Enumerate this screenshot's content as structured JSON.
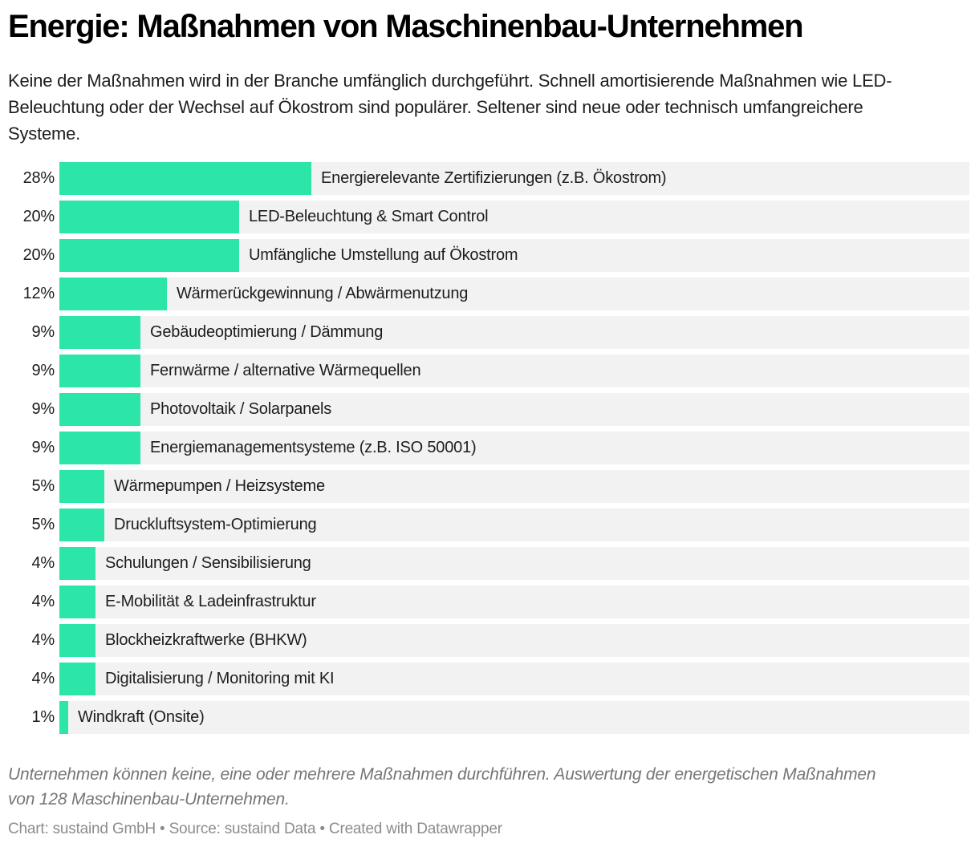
{
  "chart_data": {
    "type": "bar",
    "orientation": "horizontal",
    "title": "Energie: Maßnahmen von Maschinenbau-Unternehmen",
    "subtitle": "Keine der Maßnahmen wird in der Branche umfänglich durchgeführt. Schnell amortisierende Maßnahmen wie LED-Beleuchtung oder der Wechsel auf Ökostrom sind populärer. Seltener sind neue oder technisch umfangreichere Systeme.",
    "categories": [
      "Energierelevante Zertifizierungen (z.B. Ökostrom)",
      "LED-Beleuchtung & Smart Control",
      "Umfängliche Umstellung auf Ökostrom",
      "Wärmerückgewinnung / Abwärmenutzung",
      "Gebäudeoptimierung / Dämmung",
      "Fernwärme / alternative Wärmequellen",
      "Photovoltaik / Solarpanels",
      "Energiemanagementsysteme (z.B. ISO 50001)",
      "Wärmepumpen / Heizsysteme",
      "Druckluftsystem-Optimierung",
      "Schulungen / Sensibilisierung",
      "E-Mobilität & Ladeinfrastruktur",
      "Blockheizkraftwerke (BHKW)",
      "Digitalisierung / Monitoring mit KI",
      "Windkraft (Onsite)"
    ],
    "values": [
      28,
      20,
      20,
      12,
      9,
      9,
      9,
      9,
      5,
      5,
      4,
      4,
      4,
      4,
      1
    ],
    "value_labels": [
      "28%",
      "20%",
      "20%",
      "12%",
      "9%",
      "9%",
      "9%",
      "9%",
      "5%",
      "5%",
      "4%",
      "4%",
      "4%",
      "4%",
      "1%"
    ],
    "unit": "%",
    "xlim": [
      0,
      100
    ],
    "grid": false,
    "legend": false,
    "notes": "Unternehmen können keine, eine oder mehrere Maßnahmen durchführen. Auswertung der energetischen Maßnahmen von 128 Maschinenbau-Unternehmen.",
    "byline": "Chart: sustaind GmbH • Source: sustaind Data • Created with Datawrapper",
    "colors": {
      "bar": "#2ce5a8",
      "track": "#f2f2f2",
      "title": "#000000",
      "text": "#1d1d1d",
      "notes": "#767676",
      "byline": "#8c8c8c"
    }
  }
}
